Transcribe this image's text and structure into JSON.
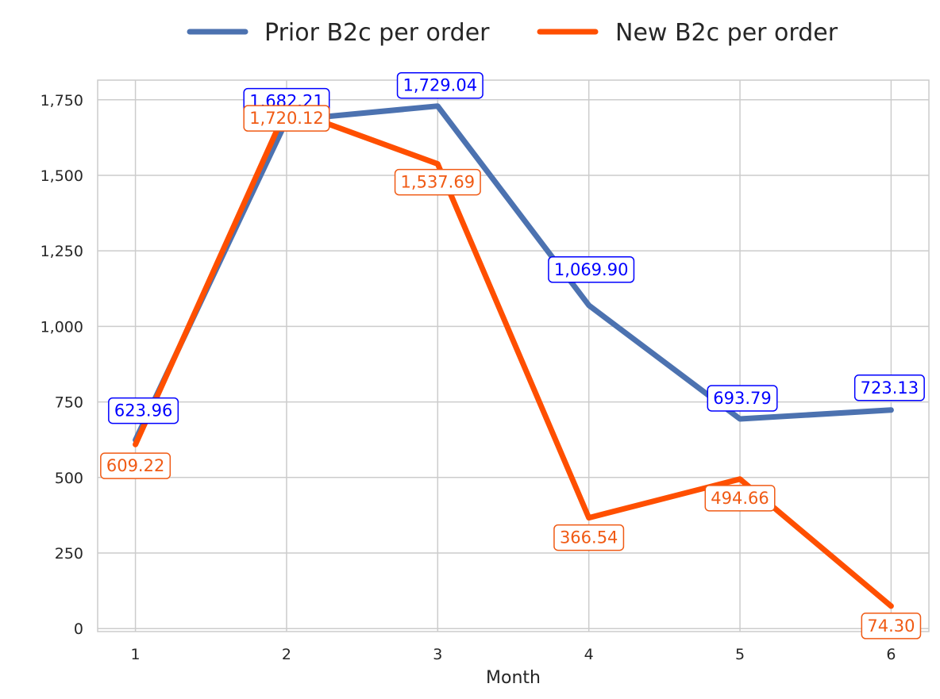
{
  "chart_data": {
    "type": "line",
    "title": "",
    "xlabel": "Month",
    "ylabel": "",
    "x": [
      1,
      2,
      3,
      4,
      5,
      6
    ],
    "x_tick_labels": [
      "1",
      "2",
      "3",
      "4",
      "5",
      "6"
    ],
    "y_ticks": [
      0,
      250,
      500,
      750,
      1000,
      1250,
      1500,
      1750
    ],
    "y_tick_labels": [
      "0",
      "250",
      "500",
      "750",
      "1,000",
      "1,250",
      "1,500",
      "1,750"
    ],
    "xlim": [
      0.75,
      6.25
    ],
    "ylim": [
      -10,
      1815
    ],
    "grid": true,
    "legend_position": "top-center",
    "series": [
      {
        "name": "Prior B2c per order",
        "color": "#4c72b0",
        "label_color": "#0000ff",
        "values": [
          623.96,
          1682.21,
          1729.04,
          1069.9,
          693.79,
          723.13
        ],
        "labels": [
          "623.96",
          "1,682.21",
          "1,729.04",
          "1,069.90",
          "693.79",
          "723.13"
        ]
      },
      {
        "name": "New B2c per order",
        "color": "#ff4f00",
        "label_color": "#f05a14",
        "values": [
          609.22,
          1720.12,
          1537.69,
          366.54,
          494.66,
          74.3
        ],
        "labels": [
          "609.22",
          "1,720.12",
          "1,537.69",
          "366.54",
          "494.66",
          "74.30"
        ]
      }
    ]
  }
}
